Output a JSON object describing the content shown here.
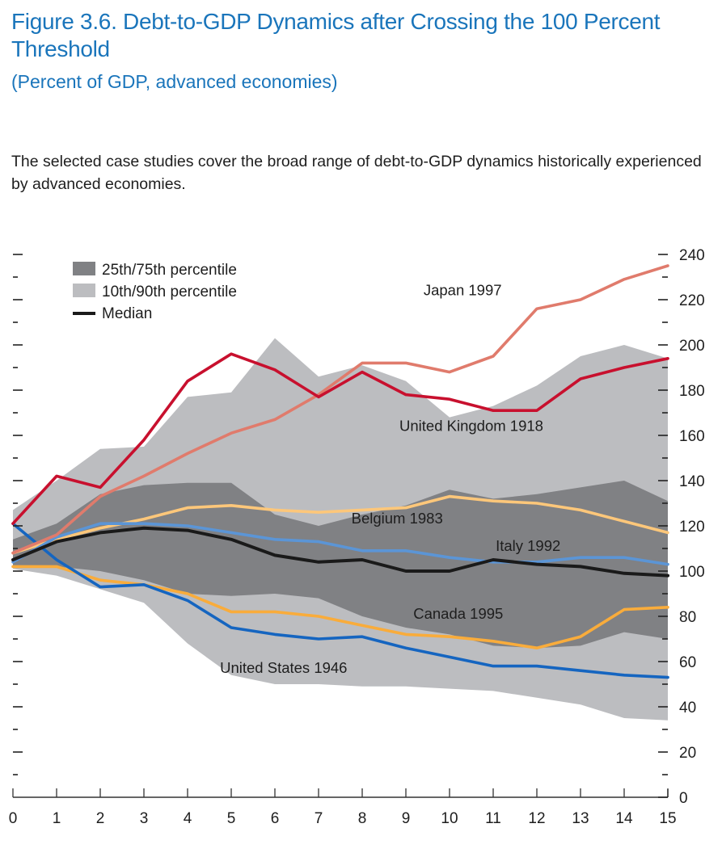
{
  "header": {
    "title": "Figure 3.6.  Debt-to-GDP Dynamics after Crossing the 100 Percent Threshold",
    "subtitle": "(Percent of GDP, advanced economies)",
    "description": "The selected case studies cover the broad range of debt-to-GDP dynamics historically experienced by advanced economies."
  },
  "colors": {
    "title": "#1a75bb",
    "band_inner": "#808184",
    "band_outer": "#bcbdc0",
    "median": "#1a1a1a",
    "japan": "#e07b6c",
    "uk": "#c8102e",
    "belgium": "#fdc77a",
    "italy": "#5b95d6",
    "canada": "#f9ac3b",
    "us": "#1565c0"
  },
  "chart_data": {
    "type": "line",
    "title": "Debt-to-GDP Dynamics after Crossing the 100 Percent Threshold",
    "subtitle": "Percent of GDP, advanced economies",
    "xlabel": "",
    "ylabel": "Percent of GDP",
    "x": [
      0,
      1,
      2,
      3,
      4,
      5,
      6,
      7,
      8,
      9,
      10,
      11,
      12,
      13,
      14,
      15
    ],
    "x_tick_labels": [
      "0",
      "1",
      "2",
      "3",
      "4",
      "5",
      "6",
      "7",
      "8",
      "9",
      "10",
      "11",
      "12",
      "13",
      "14",
      "15"
    ],
    "xlim": [
      0,
      15
    ],
    "ylim": [
      0,
      240
    ],
    "y_ticks": [
      0,
      20,
      40,
      60,
      80,
      100,
      120,
      140,
      160,
      180,
      200,
      220,
      240
    ],
    "y_tick_labels": [
      "0",
      "20",
      "40",
      "60",
      "80",
      "100",
      "120",
      "140",
      "160",
      "180",
      "200",
      "220",
      "240"
    ],
    "y_axis_side": "right",
    "grid": false,
    "legend_position": "top-left",
    "legend": [
      {
        "label": "25th/75th percentile",
        "kind": "band-inner"
      },
      {
        "label": "10th/90th percentile",
        "kind": "band-outer"
      },
      {
        "label": "Median",
        "kind": "line"
      }
    ],
    "bands": [
      {
        "name": "10th/90th percentile",
        "lower": [
          101,
          98,
          92,
          86,
          68,
          54,
          50,
          50,
          49,
          49,
          48,
          47,
          44,
          41,
          35,
          34
        ],
        "upper": [
          127,
          140,
          154,
          155,
          177,
          179,
          203,
          186,
          191,
          184,
          168,
          173,
          182,
          195,
          200,
          194
        ]
      },
      {
        "name": "25th/75th percentile",
        "lower": [
          102,
          102,
          100,
          96,
          90,
          89,
          90,
          88,
          80,
          75,
          72,
          67,
          66,
          67,
          73,
          70
        ],
        "upper": [
          114,
          121,
          134,
          138,
          139,
          139,
          125,
          120,
          125,
          129,
          136,
          132,
          134,
          137,
          140,
          131
        ]
      }
    ],
    "series": [
      {
        "name": "Median",
        "key": "median",
        "label": "",
        "values": [
          105,
          113,
          117,
          119,
          118,
          114,
          107,
          104,
          105,
          100,
          100,
          105,
          103,
          102,
          99,
          98
        ]
      },
      {
        "name": "Japan 1997",
        "key": "japan",
        "label": "Japan 1997",
        "values": [
          108,
          116,
          133,
          142,
          152,
          161,
          167,
          178,
          192,
          192,
          188,
          195,
          216,
          220,
          229,
          235
        ]
      },
      {
        "name": "United Kingdom 1918",
        "key": "uk",
        "label": "United Kingdom 1918",
        "values": [
          121,
          142,
          137,
          158,
          184,
          196,
          189,
          177,
          188,
          178,
          176,
          171,
          171,
          185,
          190,
          194
        ]
      },
      {
        "name": "Belgium 1983",
        "key": "belgium",
        "label": "Belgium 1983",
        "values": [
          108,
          114,
          119,
          123,
          128,
          129,
          127,
          126,
          127,
          128,
          133,
          131,
          130,
          127,
          122,
          117
        ]
      },
      {
        "name": "Italy 1992",
        "key": "italy",
        "label": "Italy 1992",
        "values": [
          104,
          115,
          121,
          121,
          120,
          117,
          114,
          113,
          109,
          109,
          106,
          104,
          104,
          106,
          106,
          103
        ]
      },
      {
        "name": "Canada 1995",
        "key": "canada",
        "label": "Canada 1995",
        "values": [
          102,
          102,
          96,
          94,
          90,
          82,
          82,
          80,
          76,
          72,
          71,
          69,
          66,
          71,
          83,
          84
        ]
      },
      {
        "name": "United States 1946",
        "key": "us",
        "label": "United States 1946",
        "values": [
          121,
          105,
          93,
          94,
          87,
          75,
          72,
          70,
          71,
          66,
          62,
          58,
          58,
          56,
          54,
          53
        ]
      }
    ],
    "annotations": [
      {
        "text": "Japan 1997",
        "x": 10.3,
        "y": 222
      },
      {
        "text": "United Kingdom 1918",
        "x": 10.5,
        "y": 162
      },
      {
        "text": "Belgium 1983",
        "x": 8.8,
        "y": 121
      },
      {
        "text": "Italy 1992",
        "x": 11.8,
        "y": 109
      },
      {
        "text": "Canada 1995",
        "x": 10.2,
        "y": 79
      },
      {
        "text": "United States 1946",
        "x": 6.2,
        "y": 55
      }
    ]
  }
}
